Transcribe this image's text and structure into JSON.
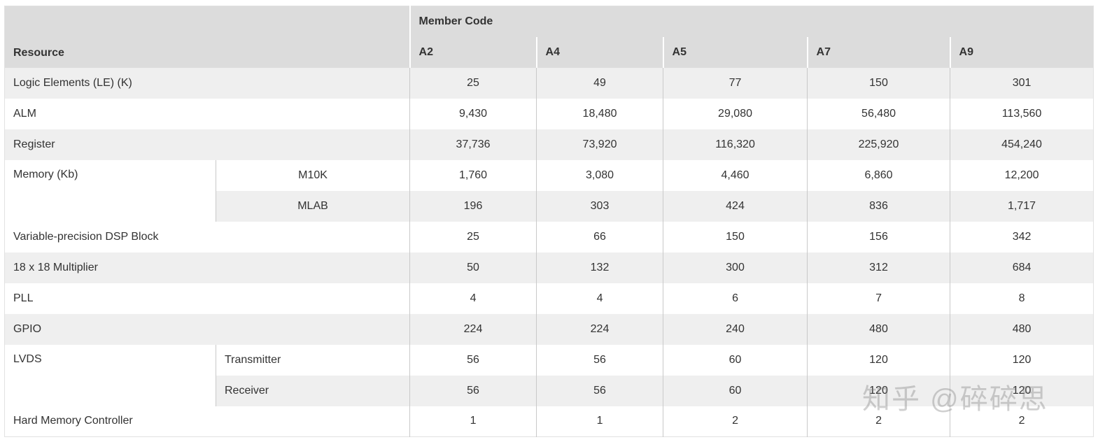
{
  "header": {
    "group": "Member Code",
    "resource": "Resource",
    "members": [
      "A2",
      "A4",
      "A5",
      "A7",
      "A9"
    ]
  },
  "rows": [
    {
      "label": "Logic Elements (LE) (K)",
      "values": [
        "25",
        "49",
        "77",
        "150",
        "301"
      ]
    },
    {
      "label": "ALM",
      "values": [
        "9,430",
        "18,480",
        "29,080",
        "56,480",
        "113,560"
      ]
    },
    {
      "label": "Register",
      "values": [
        "37,736",
        "73,920",
        "116,320",
        "225,920",
        "454,240"
      ]
    },
    {
      "label": "Memory (Kb)",
      "sub": [
        {
          "label": "M10K",
          "values": [
            "1,760",
            "3,080",
            "4,460",
            "6,860",
            "12,200"
          ]
        },
        {
          "label": "MLAB",
          "values": [
            "196",
            "303",
            "424",
            "836",
            "1,717"
          ]
        }
      ]
    },
    {
      "label": "Variable-precision DSP Block",
      "values": [
        "25",
        "66",
        "150",
        "156",
        "342"
      ]
    },
    {
      "label": "18 x 18 Multiplier",
      "values": [
        "50",
        "132",
        "300",
        "312",
        "684"
      ]
    },
    {
      "label": "PLL",
      "values": [
        "4",
        "4",
        "6",
        "7",
        "8"
      ]
    },
    {
      "label": "GPIO",
      "values": [
        "224",
        "224",
        "240",
        "480",
        "480"
      ]
    },
    {
      "label": "LVDS",
      "sub": [
        {
          "label": "Transmitter",
          "values": [
            "56",
            "56",
            "60",
            "120",
            "120"
          ]
        },
        {
          "label": "Receiver",
          "values": [
            "56",
            "56",
            "60",
            "120",
            "120"
          ]
        }
      ]
    },
    {
      "label": "Hard Memory Controller",
      "values": [
        "1",
        "1",
        "2",
        "2",
        "2"
      ]
    }
  ],
  "watermark": "知乎 @碎碎思"
}
